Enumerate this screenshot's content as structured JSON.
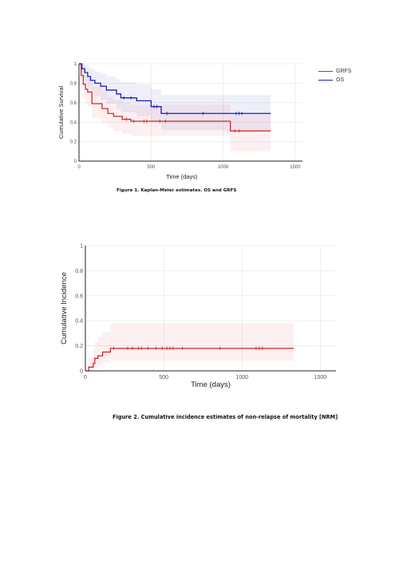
{
  "chart_data": [
    {
      "type": "line",
      "subtype": "kaplan-meier",
      "title": "",
      "caption": "Figure 1. Kaplan-Meier estimates. OS and GRFS",
      "xlabel": "Time (days)",
      "ylabel": "Cumulative Survival",
      "xlim": [
        0,
        1550
      ],
      "ylim": [
        0,
        1
      ],
      "xticks": [
        "0",
        "500",
        "1000",
        "1500"
      ],
      "yticks": [
        "0",
        "0.2",
        "0.4",
        "0.6",
        "0.8",
        "1"
      ],
      "grid": true,
      "legend": "top-right",
      "series": [
        {
          "name": "GRFS",
          "color": "#d62728",
          "x": [
            0,
            15,
            30,
            45,
            60,
            90,
            160,
            200,
            240,
            300,
            360,
            540,
            1050,
            1330
          ],
          "y": [
            1.0,
            0.88,
            0.79,
            0.74,
            0.71,
            0.59,
            0.54,
            0.49,
            0.46,
            0.43,
            0.41,
            0.41,
            0.31,
            0.31
          ],
          "ci_upper": [
            1.0,
            0.97,
            0.92,
            0.88,
            0.86,
            0.76,
            0.71,
            0.66,
            0.63,
            0.6,
            0.58,
            0.58,
            0.48,
            0.48
          ],
          "ci_lower": [
            1.0,
            0.76,
            0.65,
            0.59,
            0.56,
            0.44,
            0.39,
            0.34,
            0.31,
            0.28,
            0.26,
            0.26,
            0.1,
            0.1
          ],
          "censored_x": [
            330,
            380,
            450,
            470,
            560,
            600,
            1080,
            1110
          ]
        },
        {
          "name": "OS",
          "color": "#1f1fb4",
          "x": [
            0,
            20,
            40,
            60,
            80,
            110,
            150,
            190,
            260,
            290,
            400,
            500,
            570,
            1330
          ],
          "y": [
            1.0,
            0.95,
            0.91,
            0.87,
            0.83,
            0.8,
            0.77,
            0.73,
            0.69,
            0.65,
            0.62,
            0.56,
            0.49,
            0.49
          ],
          "ci_upper": [
            1.0,
            1.0,
            0.99,
            0.97,
            0.95,
            0.92,
            0.9,
            0.87,
            0.84,
            0.81,
            0.79,
            0.74,
            0.68,
            0.68
          ],
          "ci_lower": [
            1.0,
            0.87,
            0.81,
            0.76,
            0.72,
            0.67,
            0.63,
            0.59,
            0.54,
            0.5,
            0.46,
            0.4,
            0.32,
            0.32
          ],
          "censored_x": [
            310,
            360,
            520,
            540,
            610,
            860,
            1090,
            1110,
            1130
          ]
        }
      ]
    },
    {
      "type": "line",
      "subtype": "cumulative-incidence",
      "title": "",
      "caption": "Figure 2. Cumulative incidence estimates of non-relapse of mortality [NRM]",
      "xlabel": "Time (days)",
      "ylabel": "Cumulative Incidence",
      "xlim": [
        0,
        1600
      ],
      "ylim": [
        0,
        1
      ],
      "xticks": [
        "0",
        "500",
        "1000",
        "1500"
      ],
      "yticks": [
        "0",
        "0.2",
        "0.4",
        "0.6",
        "0.8",
        "1"
      ],
      "grid": true,
      "series": [
        {
          "color": "#d62728",
          "x": [
            0,
            20,
            50,
            60,
            80,
            110,
            160,
            1330
          ],
          "y": [
            0.0,
            0.03,
            0.06,
            0.1,
            0.12,
            0.15,
            0.18,
            0.18
          ],
          "ci_upper": [
            0.0,
            0.1,
            0.17,
            0.23,
            0.27,
            0.31,
            0.38,
            0.38
          ],
          "ci_lower": [
            0.0,
            0.0,
            0.0,
            0.02,
            0.04,
            0.06,
            0.08,
            0.08
          ],
          "censored_x": [
            180,
            270,
            300,
            340,
            360,
            400,
            450,
            490,
            520,
            540,
            560,
            620,
            860,
            1090,
            1110,
            1130
          ]
        }
      ]
    }
  ]
}
